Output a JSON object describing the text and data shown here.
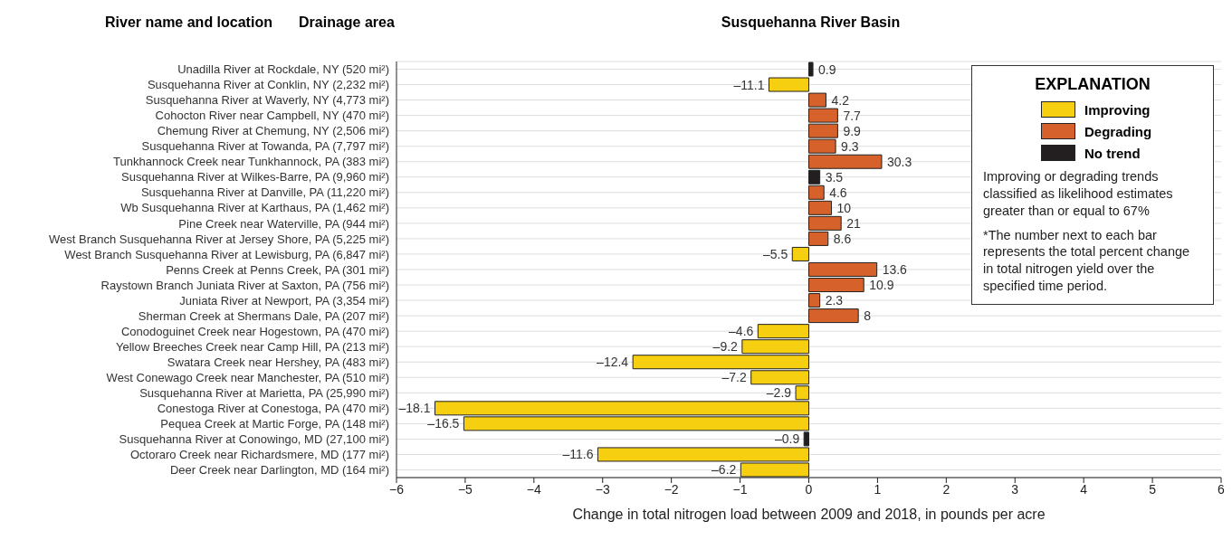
{
  "chart_data": {
    "type": "bar",
    "orientation": "horizontal",
    "stacked": true,
    "title": "Susquehanna River Basin",
    "xlabel": "Change in total nitrogen load between 2009 and 2018, in pounds per acre",
    "legend_title": "EXPLANATION",
    "legend": "top right",
    "grid": "y",
    "annotations": [
      "River name and location",
      "Drainage area",
      "Improving or degrading trends classified as likelihood estimates greater than or equal to 67%",
      "*The number next to each bar represents the total percent change in total nitrogen yield over the specified time period.",
      {
        "text": "0.9",
        "x": 0.06,
        "y": "Unadilla River at Rockdale, NY (520 mi²)"
      },
      {
        "text": "–11.1",
        "x": -0.58,
        "y": "Susquehanna River at Conklin, NY (2,232 mi²)"
      },
      {
        "text": "4.2",
        "x": 0.25,
        "y": "Susquehanna River at Waverly, NY (4,773 mi²)"
      },
      {
        "text": "7.7",
        "x": 0.42,
        "y": "Cohocton River near Campbell, NY (470 mi²)"
      },
      {
        "text": "9.9",
        "x": 0.42,
        "y": "Chemung River at Chemung, NY (2,506 mi²)"
      },
      {
        "text": "9.3",
        "x": 0.39,
        "y": "Susquehanna River at Towanda, PA (7,797 mi²)"
      },
      {
        "text": "30.3",
        "x": 1.06,
        "y": "Tunkhannock Creek near Tunkhannock, PA (383 mi²)"
      },
      {
        "text": "3.5",
        "x": 0.16,
        "y": "Susquehanna River at Wilkes-Barre, PA (9,960 mi²)"
      },
      {
        "text": "4.6",
        "x": 0.22,
        "y": "Susquehanna River at Danville, PA (11,220 mi²)"
      },
      {
        "text": "10",
        "x": 0.33,
        "y": "Wb Susquehanna River at Karthaus, PA (1,462 mi²)"
      },
      {
        "text": "21",
        "x": 0.47,
        "y": "Pine Creek near Waterville, PA (944 mi²)"
      },
      {
        "text": "8.6",
        "x": 0.28,
        "y": "West Branch Susquehanna River at Jersey Shore, PA (5,225 mi²)"
      },
      {
        "text": "–5.5",
        "x": -0.24,
        "y": "West Branch Susquehanna River at Lewisburg, PA (6,847 mi²)"
      },
      {
        "text": "13.6",
        "x": 0.99,
        "y": "Penns Creek at Penns Creek, PA (301 mi²)"
      },
      {
        "text": "10.9",
        "x": 0.8,
        "y": "Raystown Branch Juniata River at Saxton, PA (756 mi²)"
      },
      {
        "text": "2.3",
        "x": 0.16,
        "y": "Juniata River at Newport, PA (3,354 mi²)"
      },
      {
        "text": "8",
        "x": 0.72,
        "y": "Sherman Creek at Shermans Dale, PA (207 mi²)"
      },
      {
        "text": "–4.6",
        "x": -0.74,
        "y": "Conodoguinet Creek near Hogestown, PA (470 mi²)"
      },
      {
        "text": "–9.2",
        "x": -0.97,
        "y": "Yellow Breeches Creek near Camp Hill, PA (213 mi²)"
      },
      {
        "text": "–12.4",
        "x": -2.56,
        "y": "Swatara Creek near Hershey, PA (483 mi²)"
      },
      {
        "text": "–7.2",
        "x": -0.84,
        "y": "West Conewago Creek near Manchester, PA (510 mi²)"
      },
      {
        "text": "–2.9",
        "x": -0.19,
        "y": "Susquehanna River at Marietta, PA (25,990 mi²)"
      },
      {
        "text": "–18.1",
        "x": -5.44,
        "y": "Conestoga River at Conestoga, PA (470 mi²)"
      },
      {
        "text": "–16.5",
        "x": -5.02,
        "y": "Pequea Creek at Martic Forge, PA (148 mi²)"
      },
      {
        "text": "–0.9",
        "x": -0.07,
        "y": "Susquehanna River at Conowingo, MD (27,100 mi²)"
      },
      {
        "text": "–11.6",
        "x": -3.07,
        "y": "Octoraro Creek near Richardsmere, MD (177 mi²)"
      },
      {
        "text": "–6.2",
        "x": -0.99,
        "y": "Deer Creek near Darlington, MD (164 mi²)"
      }
    ],
    "categories": [
      "Unadilla River at Rockdale, NY (520 mi²)",
      "Susquehanna River at Conklin, NY (2,232 mi²)",
      "Susquehanna River at Waverly, NY (4,773 mi²)",
      "Cohocton River near Campbell, NY (470 mi²)",
      "Chemung River at Chemung, NY (2,506 mi²)",
      "Susquehanna River at Towanda, PA (7,797 mi²)",
      "Tunkhannock Creek near Tunkhannock, PA (383 mi²)",
      "Susquehanna River at Wilkes-Barre, PA (9,960 mi²)",
      "Susquehanna River at Danville, PA (11,220 mi²)",
      "Wb Susquehanna River at Karthaus, PA (1,462 mi²)",
      "Pine Creek near Waterville, PA (944 mi²)",
      "West Branch Susquehanna River at Jersey Shore, PA (5,225 mi²)",
      "West Branch Susquehanna River at Lewisburg, PA (6,847 mi²)",
      "Penns Creek at Penns Creek, PA (301 mi²)",
      "Raystown Branch Juniata River at Saxton, PA (756 mi²)",
      "Juniata River at Newport, PA (3,354 mi²)",
      "Sherman Creek at Shermans Dale, PA (207 mi²)",
      "Conodoguinet Creek near Hogestown, PA (470 mi²)",
      "Yellow Breeches Creek near Camp Hill, PA (213 mi²)",
      "Swatara Creek near Hershey, PA (483 mi²)",
      "West Conewago Creek near Manchester, PA (510 mi²)",
      "Susquehanna River at Marietta, PA (25,990 mi²)",
      "Conestoga River at Conestoga, PA (470 mi²)",
      "Pequea Creek at Martic Forge, PA (148 mi²)",
      "Susquehanna River at Conowingo, MD (27,100 mi²)",
      "Octoraro Creek near Richardsmere, MD (177 mi²)",
      "Deer Creek near Darlington, MD (164 mi²)"
    ],
    "xlim": [
      -6,
      6
    ],
    "xticks": [
      {
        "value": -6,
        "label": "−6"
      },
      {
        "value": -5,
        "label": "−5"
      },
      {
        "value": -4,
        "label": "−4"
      },
      {
        "value": -3,
        "label": "−3"
      },
      {
        "value": -2,
        "label": "−2"
      },
      {
        "value": -1,
        "label": "−1"
      },
      0,
      1,
      2,
      3,
      4,
      5,
      6
    ],
    "series": [
      {
        "name": "Improving",
        "color": "#f5cf10",
        "values": [
          null,
          -0.58,
          null,
          null,
          null,
          null,
          null,
          null,
          null,
          null,
          null,
          null,
          -0.24,
          null,
          null,
          null,
          null,
          -0.74,
          -0.97,
          -2.56,
          -0.84,
          -0.19,
          -5.44,
          -5.02,
          null,
          -3.07,
          -0.99
        ]
      },
      {
        "name": "Degrading",
        "color": "#d6612a",
        "values": [
          null,
          null,
          0.25,
          0.42,
          0.42,
          0.39,
          1.06,
          null,
          0.22,
          0.33,
          0.47,
          0.28,
          null,
          0.99,
          0.8,
          0.16,
          0.72,
          null,
          null,
          null,
          null,
          null,
          null,
          null,
          null,
          null,
          null
        ]
      },
      {
        "name": "No trend",
        "color": "#231f20",
        "values": [
          0.06,
          null,
          null,
          null,
          null,
          null,
          null,
          0.16,
          null,
          null,
          null,
          null,
          null,
          null,
          null,
          null,
          null,
          null,
          null,
          null,
          null,
          null,
          null,
          null,
          -0.07,
          null,
          null
        ]
      }
    ]
  }
}
